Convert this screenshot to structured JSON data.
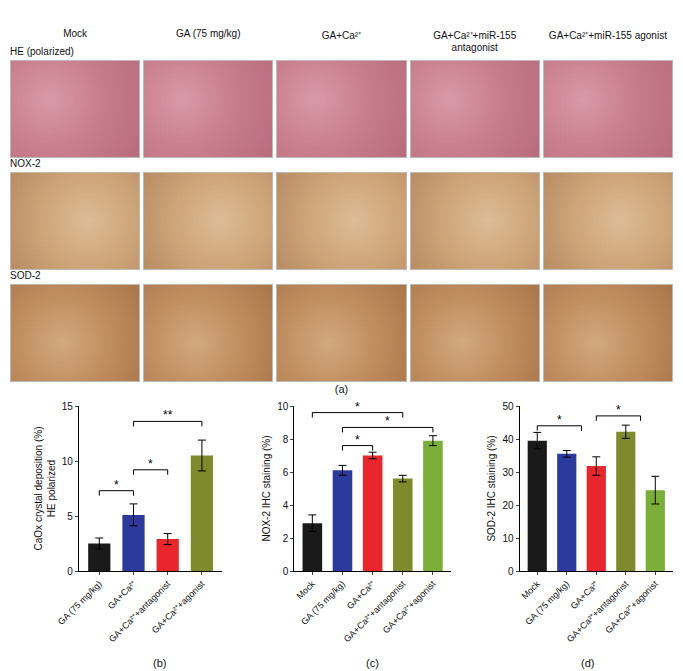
{
  "panel_a": {
    "label": "(a)",
    "columns": [
      "Mock",
      "GA (75 mg/kg)",
      "GA+Ca²⁺",
      "GA+Ca²⁺+miR-155 antagonist",
      "GA+Ca²⁺+miR-155 agonist"
    ],
    "rows": [
      "HE (polarized)",
      "NOX-2",
      "SOD-2"
    ]
  },
  "chart_data": [
    {
      "type": "bar",
      "panel_label": "(b)",
      "y_label": [
        "CaOx crystal deposition (%)",
        "HE polarized"
      ],
      "categories": [
        "GA (75 mg/kg)",
        "GA+Ca²⁺",
        "GA+Ca²⁺+antagonist",
        "GA+Ca²⁺+agonist"
      ],
      "values": [
        2.5,
        5.1,
        2.9,
        10.5
      ],
      "errors": [
        0.5,
        1.0,
        0.5,
        1.4
      ],
      "colors": [
        "#1a1a1a",
        "#2b3a9c",
        "#e8262b",
        "#7f8a2c"
      ],
      "ylim": [
        0,
        15
      ],
      "yticks": [
        0,
        5,
        10,
        15
      ],
      "significance": [
        {
          "from": 0,
          "to": 1,
          "y": 7.3,
          "label": "*"
        },
        {
          "from": 1,
          "to": 2,
          "y": 9.2,
          "label": "*"
        },
        {
          "from": 1,
          "to": 3,
          "y": 13.6,
          "label": "**"
        }
      ]
    },
    {
      "type": "bar",
      "panel_label": "(c)",
      "y_label": [
        "NOX-2 IHC staining (%)"
      ],
      "categories": [
        "Mock",
        "GA (75 mg/kg)",
        "GA+Ca²⁺",
        "GA+Ca²⁺+antagonist",
        "GA+Ca²⁺+agonist"
      ],
      "values": [
        2.9,
        6.1,
        7.0,
        5.6,
        7.9
      ],
      "errors": [
        0.5,
        0.3,
        0.2,
        0.2,
        0.3
      ],
      "colors": [
        "#1a1a1a",
        "#2b3a9c",
        "#e8262b",
        "#7f8a2c",
        "#7cae3a"
      ],
      "ylim": [
        0,
        10
      ],
      "yticks": [
        0,
        2,
        4,
        6,
        8,
        10
      ],
      "significance": [
        {
          "from": 0,
          "to": 3,
          "y": 9.6,
          "label": "*"
        },
        {
          "from": 1,
          "to": 4,
          "y": 8.7,
          "label": "*"
        },
        {
          "from": 1,
          "to": 2,
          "y": 7.6,
          "label": "*"
        }
      ]
    },
    {
      "type": "bar",
      "panel_label": "(d)",
      "y_label": [
        "SOD-2 IHC staining (%)"
      ],
      "categories": [
        "Mock",
        "GA (75 mg/kg)",
        "GA+Ca²⁺",
        "GA+Ca²⁺+antagonist",
        "GA+Ca²⁺+agonist"
      ],
      "values": [
        39.5,
        35.5,
        31.8,
        42.2,
        24.5
      ],
      "errors": [
        2.5,
        1.0,
        2.8,
        2.0,
        4.2
      ],
      "colors": [
        "#1a1a1a",
        "#2b3a9c",
        "#e8262b",
        "#7f8a2c",
        "#7cae3a"
      ],
      "ylim": [
        0,
        50
      ],
      "yticks": [
        0,
        10,
        20,
        30,
        40,
        50
      ],
      "significance": [
        {
          "from": 0,
          "to": 1.5,
          "y": 44,
          "label": "*"
        },
        {
          "from": 2,
          "to": 3.5,
          "y": 47,
          "label": "*"
        }
      ]
    }
  ]
}
